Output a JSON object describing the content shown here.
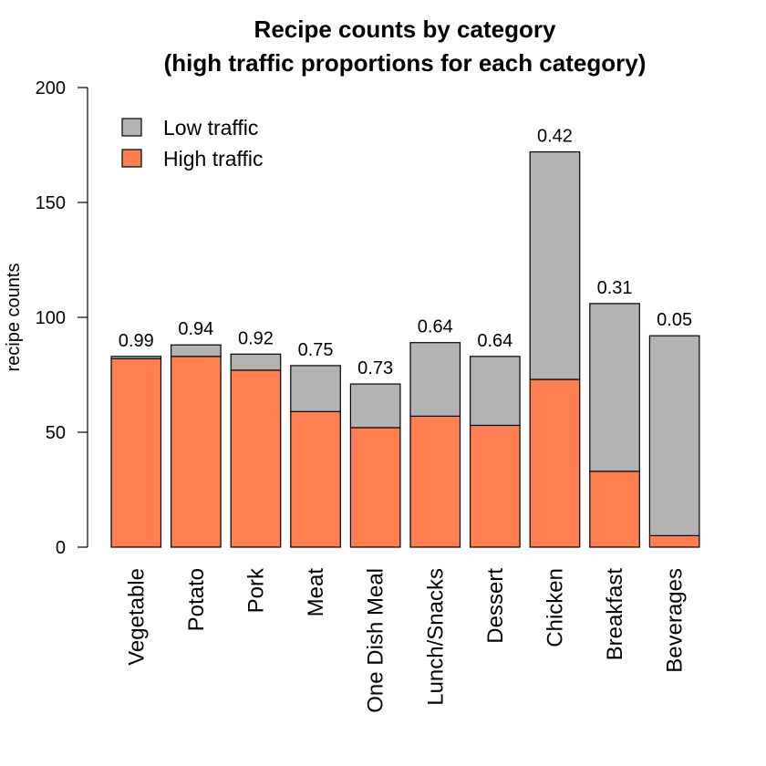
{
  "chart_data": {
    "type": "bar",
    "stacked": true,
    "title": [
      "Recipe counts by category",
      "(high traffic proportions for each category)"
    ],
    "xlabel": "",
    "ylabel": "recipe counts",
    "ylim": [
      0,
      200
    ],
    "yticks": [
      0,
      50,
      100,
      150,
      200
    ],
    "categories": [
      "Vegetable",
      "Potato",
      "Pork",
      "Meat",
      "One Dish Meal",
      "Lunch/Snacks",
      "Dessert",
      "Chicken",
      "Breakfast",
      "Beverages"
    ],
    "series": [
      {
        "name": "High traffic",
        "color": "#ff7f50",
        "values": [
          82,
          83,
          77,
          59,
          52,
          57,
          53,
          73,
          33,
          5
        ]
      },
      {
        "name": "Low traffic",
        "color": "#b3b3b3",
        "values": [
          1,
          5,
          7,
          20,
          19,
          32,
          30,
          99,
          73,
          87
        ]
      }
    ],
    "bar_labels": [
      "0.99",
      "0.94",
      "0.92",
      "0.75",
      "0.73",
      "0.64",
      "0.64",
      "0.42",
      "0.31",
      "0.05"
    ],
    "legend": {
      "position": "top-left",
      "entries": [
        {
          "label": "Low traffic",
          "color": "#b3b3b3"
        },
        {
          "label": "High traffic",
          "color": "#ff7f50"
        }
      ]
    },
    "grid": false
  }
}
